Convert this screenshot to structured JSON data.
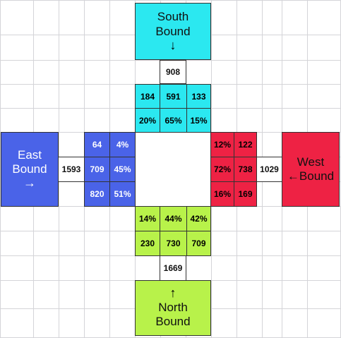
{
  "colors": {
    "south": "#2BE8F0",
    "east": "#4A63E8",
    "west": "#EE2244",
    "north": "#B8F24A",
    "grid_line": "#d4d4d8",
    "center": "#ffffff"
  },
  "south": {
    "line1": "South",
    "line2": "Bound",
    "arrow": "↓",
    "total": "908",
    "counts": [
      "184",
      "591",
      "133"
    ],
    "pcts": [
      "20%",
      "65%",
      "15%"
    ]
  },
  "east": {
    "line1": "East",
    "line2": "Bound",
    "arrow": "→",
    "total": "1593",
    "counts": [
      "64",
      "709",
      "820"
    ],
    "pcts": [
      "4%",
      "45%",
      "51%"
    ]
  },
  "west": {
    "line1": "West",
    "line2": "←Bound",
    "total": "1029",
    "pcts": [
      "12%",
      "72%",
      "16%"
    ],
    "counts": [
      "122",
      "738",
      "169"
    ]
  },
  "north": {
    "line1": "North",
    "line2": "Bound",
    "arrow": "↑",
    "total": "1669",
    "pcts": [
      "14%",
      "44%",
      "42%"
    ],
    "counts": [
      "230",
      "730",
      "709"
    ]
  }
}
